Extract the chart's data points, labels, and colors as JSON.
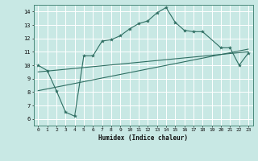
{
  "title": "",
  "xlabel": "Humidex (Indice chaleur)",
  "xlim": [
    -0.5,
    23.5
  ],
  "ylim": [
    5.5,
    14.5
  ],
  "xticks": [
    0,
    1,
    2,
    3,
    4,
    5,
    6,
    7,
    8,
    9,
    10,
    11,
    12,
    13,
    14,
    15,
    16,
    17,
    18,
    19,
    20,
    21,
    22,
    23
  ],
  "yticks": [
    6,
    7,
    8,
    9,
    10,
    11,
    12,
    13,
    14
  ],
  "bg_color": "#c8e8e4",
  "grid_color": "#ffffff",
  "line_color": "#2e6e62",
  "series1_x": [
    0,
    1,
    2,
    3,
    4,
    5,
    6,
    7,
    8,
    9,
    10,
    11,
    12,
    13,
    14,
    15,
    16,
    17,
    18,
    20,
    21,
    22,
    23
  ],
  "series1_y": [
    10.0,
    9.6,
    8.1,
    6.5,
    6.2,
    10.7,
    10.7,
    11.8,
    11.9,
    12.2,
    12.7,
    13.1,
    13.3,
    13.9,
    14.3,
    13.2,
    12.6,
    12.5,
    12.5,
    11.3,
    11.3,
    10.0,
    10.9
  ],
  "series2_x": [
    0,
    23
  ],
  "series2_y": [
    8.1,
    11.2
  ],
  "series3_x": [
    0,
    23
  ],
  "series3_y": [
    9.5,
    11.0
  ]
}
